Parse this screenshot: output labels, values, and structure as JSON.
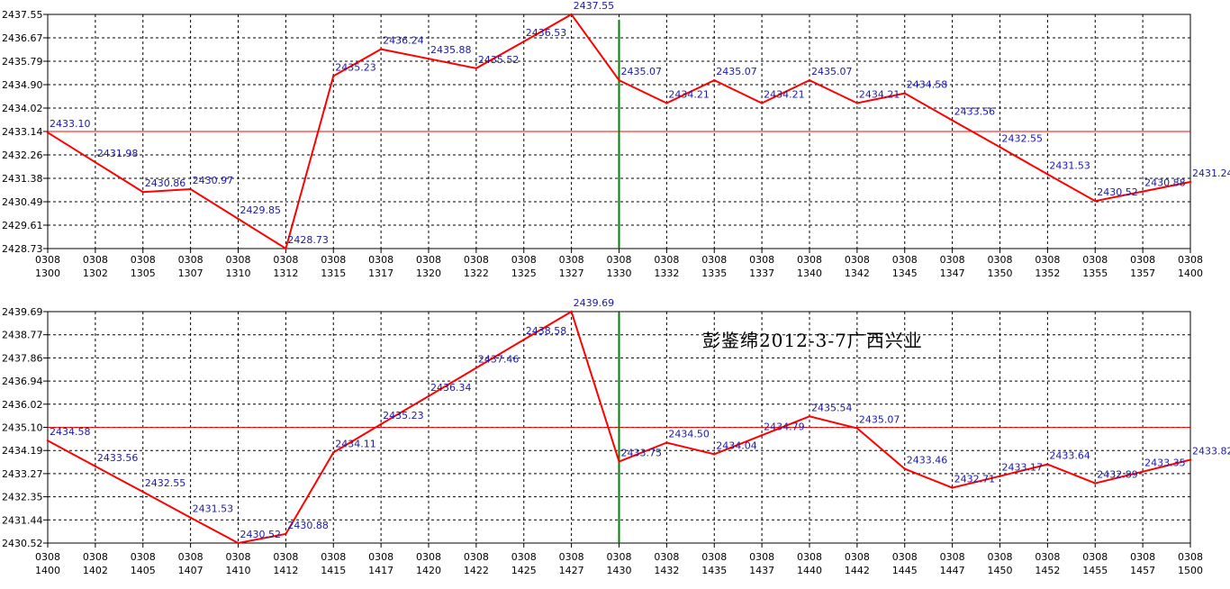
{
  "chart_data": [
    {
      "type": "line",
      "title": "",
      "x": [
        "0308 1300",
        "0308 1302",
        "0308 1305",
        "0308 1307",
        "0308 1310",
        "0308 1312",
        "0308 1315",
        "0308 1317",
        "0308 1320",
        "0308 1322",
        "0308 1325",
        "0308 1327",
        "0308 1330",
        "0308 1332",
        "0308 1335",
        "0308 1337",
        "0308 1340",
        "0308 1342",
        "0308 1345",
        "0308 1347",
        "0308 1350",
        "0308 1352",
        "0308 1355",
        "0308 1357",
        "0308 1400"
      ],
      "series": [
        {
          "values": [
            2433.1,
            2431.98,
            2430.86,
            2430.97,
            2429.85,
            2428.73,
            2435.23,
            2436.24,
            2435.88,
            2435.52,
            2436.53,
            2437.55,
            2435.07,
            2434.21,
            2435.07,
            2434.21,
            2435.07,
            2434.21,
            2434.58,
            2433.56,
            2432.55,
            2431.53,
            2430.52,
            2430.88,
            2431.24
          ]
        }
      ],
      "data_labels": [
        "2433.10",
        "2431.98",
        "2430.86",
        "2430.97",
        "2429.85",
        "2428.73",
        "2435.23",
        "2436.24",
        "2435.88",
        "2435.52",
        "2436.53",
        "2437.55",
        "2435.07",
        "2434.21",
        "2435.07",
        "2434.21",
        "2435.07",
        "2434.21",
        "2434.58",
        "2433.56",
        "2432.55",
        "2431.53",
        "2430.52",
        "2430.88",
        "2431.24"
      ],
      "y_ticks": [
        "2437.55",
        "2436.67",
        "2435.79",
        "2434.90",
        "2434.02",
        "2433.14",
        "2432.26",
        "2431.38",
        "2430.49",
        "2429.61",
        "2428.73"
      ],
      "ylim": [
        2428.73,
        2437.55
      ],
      "reference_line": 2433.14,
      "marker_x": "0308 1330",
      "grid": true,
      "colors": {
        "line": "#ff0000",
        "reference": "#ff0000",
        "marker": "#008000",
        "grid": "#000000",
        "labels": "#1a1aa8"
      }
    },
    {
      "type": "line",
      "title": "",
      "annotation": "彭鉴绵2012-3-7广西兴业",
      "x": [
        "0308 1400",
        "0308 1402",
        "0308 1405",
        "0308 1407",
        "0308 1410",
        "0308 1412",
        "0308 1415",
        "0308 1417",
        "0308 1420",
        "0308 1422",
        "0308 1425",
        "0308 1427",
        "0308 1430",
        "0308 1432",
        "0308 1435",
        "0308 1437",
        "0308 1440",
        "0308 1442",
        "0308 1445",
        "0308 1447",
        "0308 1450",
        "0308 1452",
        "0308 1455",
        "0308 1457",
        "0308 1500"
      ],
      "series": [
        {
          "values": [
            2434.58,
            2433.56,
            2432.55,
            2431.53,
            2430.52,
            2430.88,
            2434.11,
            2435.23,
            2436.34,
            2437.46,
            2438.58,
            2439.69,
            2433.75,
            2434.5,
            2434.04,
            2434.79,
            2435.54,
            2435.07,
            2433.46,
            2432.71,
            2433.17,
            2433.64,
            2432.89,
            2433.35,
            2433.82
          ]
        }
      ],
      "data_labels": [
        "2434.58",
        "2433.56",
        "2432.55",
        "2431.53",
        "2430.52",
        "2430.88",
        "2434.11",
        "2435.23",
        "2436.34",
        "2437.46",
        "2438.58",
        "2439.69",
        "2433.75",
        "2434.50",
        "2434.04",
        "2434.79",
        "2435.54",
        "2435.07",
        "2433.46",
        "2432.71",
        "2433.17",
        "2433.64",
        "2432.89",
        "2433.35",
        "2433.82"
      ],
      "y_ticks": [
        "2439.69",
        "2438.77",
        "2437.86",
        "2436.94",
        "2436.02",
        "2435.10",
        "2434.19",
        "2433.27",
        "2432.35",
        "2431.44",
        "2430.52"
      ],
      "ylim": [
        2430.52,
        2439.69
      ],
      "reference_line": 2435.1,
      "marker_x": "0308 1430",
      "grid": true,
      "colors": {
        "line": "#ff0000",
        "reference": "#ff0000",
        "marker": "#008000",
        "grid": "#000000",
        "labels": "#1a1aa8"
      }
    }
  ]
}
